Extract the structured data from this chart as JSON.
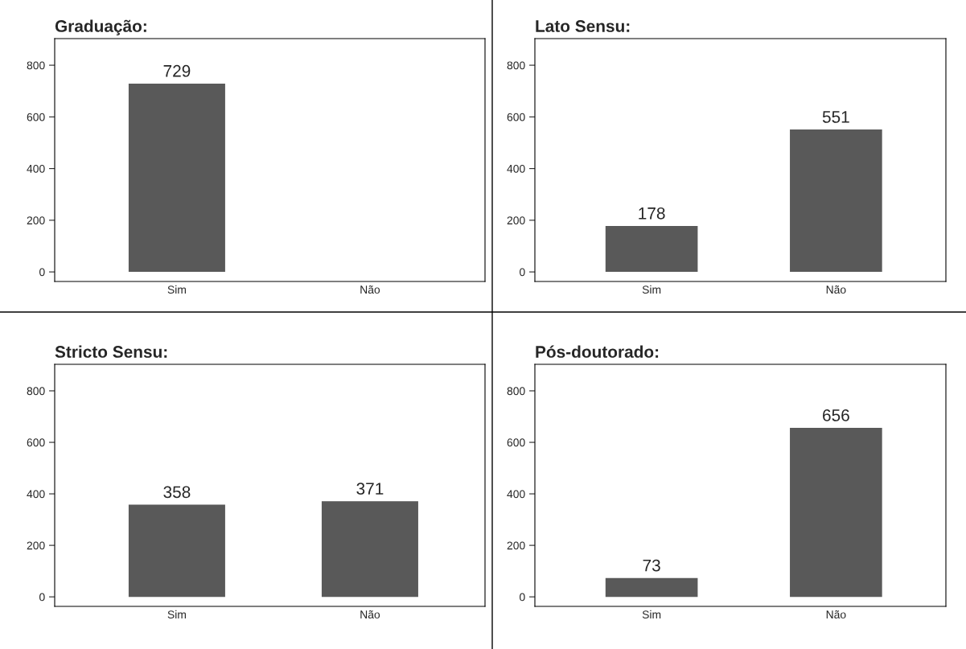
{
  "chart_data": [
    {
      "type": "bar",
      "title": "Graduação:",
      "categories": [
        "Sim",
        "Não"
      ],
      "values": [
        729,
        0
      ],
      "value_labels": [
        "729",
        null
      ],
      "color": "#595959",
      "ylim": [
        -37,
        903
      ],
      "yticks": [
        0,
        200,
        400,
        600,
        800
      ],
      "grid": false
    },
    {
      "type": "bar",
      "title": "Lato Sensu:",
      "categories": [
        "Sim",
        "Não"
      ],
      "values": [
        178,
        551
      ],
      "data_labels": true,
      "color": "#595959",
      "ylim": [
        -37,
        903
      ],
      "yticks": [
        0,
        200,
        400,
        600,
        800
      ],
      "grid": false
    },
    {
      "type": "bar",
      "title": "Stricto Sensu:",
      "categories": [
        "Sim",
        "Não"
      ],
      "values": [
        358,
        371
      ],
      "data_labels": true,
      "color": "#595959",
      "ylim": [
        -37,
        903
      ],
      "yticks": [
        0,
        200,
        400,
        600,
        800
      ],
      "grid": false
    },
    {
      "type": "bar",
      "title": "Pós-doutorado:",
      "categories": [
        "Sim",
        "Não"
      ],
      "values": [
        73,
        656
      ],
      "data_labels": true,
      "color": "#595959",
      "ylim": [
        -37,
        903
      ],
      "yticks": [
        0,
        200,
        400,
        600,
        800
      ],
      "grid": false
    }
  ]
}
